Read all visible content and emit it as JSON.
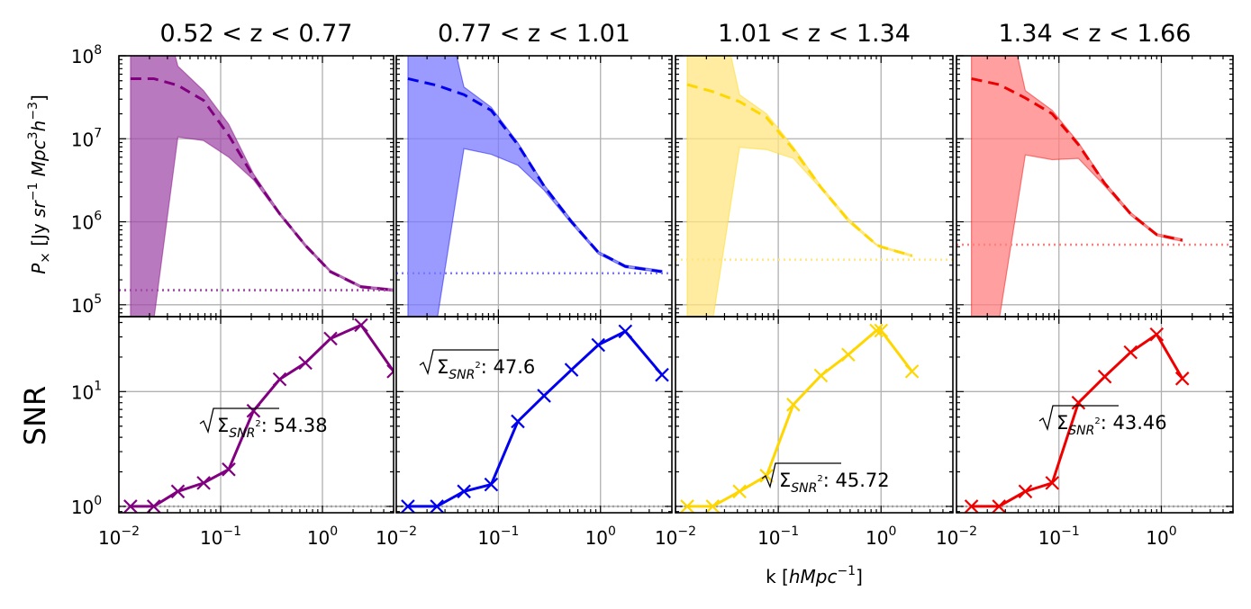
{
  "ylabel_top": "P× [Jy sr−1 Mpc3h−3]",
  "ylabel_top_parts": {
    "p": "P",
    "sub": "×",
    "unit_open": " [Jy ",
    "sr": "sr",
    "e1": "−1",
    "mpc": " Mpc",
    "e3": "3",
    "h": "h",
    "e4": "−3",
    "unit_close": "]"
  },
  "ylabel_bottom": "SNR",
  "xlabel": "k [hMpc−1]",
  "xlabel_parts": {
    "k": "k [",
    "unit": "hMpc",
    "exp": "−1",
    "close": "]"
  },
  "tick_labels": {
    "x": [
      {
        "base": "10",
        "exp": "−2"
      },
      {
        "base": "10",
        "exp": "−1"
      },
      {
        "base": "10",
        "exp": "0"
      }
    ],
    "top_y": [
      {
        "base": "10",
        "exp": "8"
      },
      {
        "base": "10",
        "exp": "7"
      },
      {
        "base": "10",
        "exp": "6"
      },
      {
        "base": "10",
        "exp": "5"
      }
    ],
    "bottom_y": [
      {
        "base": "10",
        "exp": "1"
      },
      {
        "base": "10",
        "exp": "0"
      }
    ]
  },
  "chart_data": [
    {
      "type": "line",
      "title": "0.52 < z < 0.77",
      "color": "#800080",
      "fill_color": "#a24ca8",
      "k": [
        0.013,
        0.022,
        0.038,
        0.068,
        0.12,
        0.21,
        0.38,
        0.68,
        1.2,
        2.4,
        5.0
      ],
      "pk_model": [
        53000000.0,
        53000000.0,
        44000000.0,
        29000000.0,
        11000000.0,
        3500000.0,
        1250000.0,
        520000.0,
        250000.0,
        165000.0,
        150000.0
      ],
      "pk_upper": [
        1000000000.0,
        1000000000.0,
        75000000.0,
        38000000.0,
        15000000.0,
        3800000.0,
        1300000.0,
        540000.0,
        260000.0,
        170000.0,
        155000.0
      ],
      "pk_lower": [
        10000.0,
        10000.0,
        10500000.0,
        9500000.0,
        6000000.0,
        3200000.0,
        1200000.0,
        500000.0,
        245000.0,
        160000.0,
        145000.0
      ],
      "noise_level": 150000.0,
      "snr": [
        1.0,
        1.0,
        1.35,
        1.6,
        2.1,
        6.8,
        12.8,
        17.8,
        29.0,
        38.0,
        15.0
      ],
      "snr_total_label": "54.38"
    },
    {
      "type": "line",
      "title": "0.77 < z < 1.01",
      "color": "#0000ee",
      "fill_color": "#7a7aff",
      "k": [
        0.013,
        0.025,
        0.046,
        0.085,
        0.155,
        0.28,
        0.52,
        0.95,
        1.75,
        4.0
      ],
      "pk_model": [
        53000000.0,
        44000000.0,
        34000000.0,
        22000000.0,
        8500000.0,
        2700000.0,
        1000000.0,
        430000.0,
        290000.0,
        250000.0
      ],
      "pk_upper": [
        1000000000.0,
        1000000000.0,
        42000000.0,
        24000000.0,
        9000000.0,
        2800000.0,
        1050000.0,
        440000.0,
        300000.0,
        260000.0
      ],
      "pk_lower": [
        10000.0,
        10000.0,
        7600000.0,
        6500000.0,
        4800000.0,
        2400000.0,
        950000.0,
        410000.0,
        280000.0,
        245000.0
      ],
      "noise_level": 240000.0,
      "snr": [
        1.0,
        1.0,
        1.35,
        1.55,
        5.5,
        9.2,
        15.5,
        25.5,
        33.5,
        14.0
      ],
      "snr_total_label": "47.6"
    },
    {
      "type": "line",
      "title": "1.01 < z < 1.34",
      "color": "#ffd700",
      "fill_color": "#ffe680",
      "k": [
        0.013,
        0.023,
        0.042,
        0.077,
        0.14,
        0.26,
        0.48,
        0.9,
        1.0,
        2.0
      ],
      "pk_model": [
        45000000.0,
        37000000.0,
        28000000.0,
        18000000.0,
        7500000.0,
        2600000.0,
        1050000.0,
        530000.0,
        500000.0,
        390000.0
      ],
      "pk_upper": [
        1000000000.0,
        1000000000.0,
        34000000.0,
        20000000.0,
        8000000.0,
        2700000.0,
        1100000.0,
        540000.0,
        510000.0,
        400000.0
      ],
      "pk_lower": [
        10000.0,
        10000.0,
        7900000.0,
        7400000.0,
        5800000.0,
        2500000.0,
        1000000.0,
        520000.0,
        490000.0,
        380000.0
      ],
      "noise_level": 350000.0,
      "snr": [
        1.0,
        1.0,
        1.35,
        1.85,
        7.7,
        13.8,
        21.0,
        34.0,
        34.0,
        15.0
      ],
      "snr_total_label": "45.72"
    },
    {
      "type": "line",
      "title": "1.34 < z < 1.66",
      "color": "#ee0000",
      "fill_color": "#ff7f7f",
      "k": [
        0.014,
        0.026,
        0.047,
        0.086,
        0.155,
        0.28,
        0.5,
        0.9,
        1.6
      ],
      "pk_model": [
        53000000.0,
        45000000.0,
        31000000.0,
        20000000.0,
        8500000.0,
        2900000.0,
        1250000.0,
        700000.0,
        600000.0
      ],
      "pk_upper": [
        1000000000.0,
        1000000000.0,
        38000000.0,
        22000000.0,
        9000000.0,
        3000000.0,
        1300000.0,
        720000.0,
        620000.0
      ],
      "pk_lower": [
        10000.0,
        10000.0,
        6400000.0,
        5600000.0,
        5800000.0,
        2700000.0,
        1200000.0,
        680000.0,
        580000.0
      ],
      "noise_level": 530000.0,
      "snr": [
        1.0,
        1.0,
        1.35,
        1.6,
        8.0,
        13.5,
        22.0,
        31.5,
        13.0
      ],
      "snr_total_label": "43.46"
    }
  ]
}
